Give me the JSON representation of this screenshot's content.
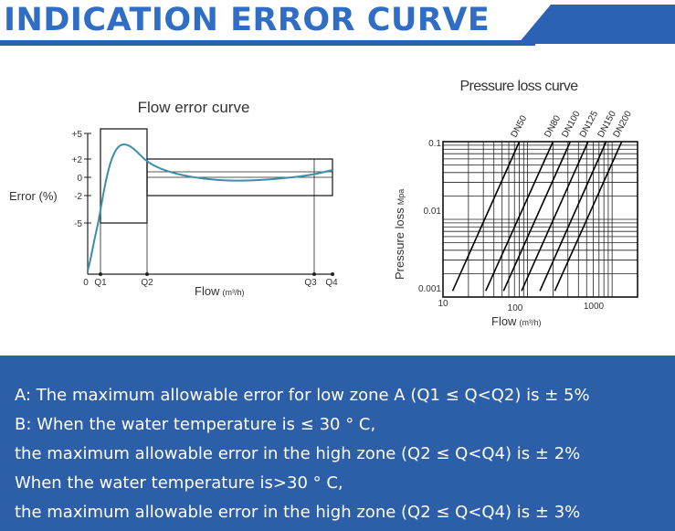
{
  "header": {
    "title": "INDICATION ERROR CURVE",
    "accent": "#2f6ec4",
    "band": "#2b62b3"
  },
  "flow_chart": {
    "title": "Flow error curve",
    "ylabel": "Error (%)",
    "xlabel": "Flow",
    "xunit": "(m³/h)",
    "yticks": [
      "+5",
      "+2",
      "0",
      "-2",
      "-5"
    ],
    "xticks": [
      "0",
      "Q1",
      "Q2",
      "Q3",
      "Q4"
    ],
    "curve_color": "#3a8fa8"
  },
  "pressure_chart": {
    "title": "Pressure loss curve",
    "ylabel": "Pressure loss",
    "yunit": "Mpa",
    "xlabel": "Flow",
    "xunit": "(m³/h)",
    "yticks": [
      "0.1",
      "0.01",
      "0.001"
    ],
    "xticks": [
      "10",
      "100",
      "1000"
    ],
    "series_labels": [
      "DN50",
      "DN80",
      "DN100",
      "DN125",
      "DN150",
      "DN200"
    ]
  },
  "chart_data": [
    {
      "type": "line",
      "title": "Flow error curve",
      "xlabel": "Flow (m³/h)",
      "ylabel": "Error (%)",
      "x_ticks": [
        "0",
        "Q1",
        "Q2",
        "Q3",
        "Q4"
      ],
      "y_ticks": [
        "+5",
        "+2",
        "0",
        "-2",
        "-5"
      ],
      "ylim": [
        -15,
        6
      ],
      "series": [
        {
          "x": [
            0,
            0.05,
            0.12,
            0.2,
            0.3,
            0.45,
            0.6,
            0.8,
            1.0,
            1.3,
            1.6,
            2.0,
            2.4,
            2.8,
            3.0,
            3.2,
            3.5,
            4.0,
            4.5,
            5.0,
            5.5,
            6.0,
            6.5,
            7.0,
            7.5,
            8.0,
            8.5,
            9.0
          ],
          "y": [
            -13.5,
            -10,
            -6,
            -2,
            1,
            3.2,
            3.8,
            3.7,
            3.3,
            2.8,
            2.2,
            1.5,
            0.9,
            0.5,
            0.35,
            0.2,
            0.0,
            -0.2,
            -0.3,
            -0.3,
            -0.25,
            -0.2,
            -0.1,
            0.0,
            0.1,
            0.3,
            0.5,
            0.7
          ]
        }
      ],
      "zones": [
        {
          "name": "A",
          "from": "Q1",
          "to": "Q2",
          "limit": 5
        },
        {
          "name": "B",
          "from": "Q2",
          "to": "Q4",
          "limit": 2
        }
      ]
    },
    {
      "type": "line",
      "title": "Pressure loss curve",
      "xlabel": "Flow (m³/h)",
      "ylabel": "Pressure loss Mpa",
      "x_scale": "log",
      "y_scale": "log",
      "xlim": [
        10,
        2000
      ],
      "ylim": [
        0.001,
        0.1
      ],
      "x_ticks": [
        "10",
        "100",
        "1000"
      ],
      "y_ticks": [
        "0.1",
        "0.01",
        "0.001"
      ],
      "grid": true,
      "series": [
        {
          "name": "DN50",
          "x": [
            13,
            80
          ],
          "y": [
            0.0012,
            0.1
          ]
        },
        {
          "name": "DN80",
          "x": [
            32,
            200
          ],
          "y": [
            0.0012,
            0.1
          ]
        },
        {
          "name": "DN100",
          "x": [
            52,
            320
          ],
          "y": [
            0.0012,
            0.1
          ]
        },
        {
          "name": "DN125",
          "x": [
            85,
            520
          ],
          "y": [
            0.0012,
            0.1
          ]
        },
        {
          "name": "DN150",
          "x": [
            140,
            850
          ],
          "y": [
            0.0012,
            0.1
          ]
        },
        {
          "name": "DN200",
          "x": [
            210,
            1300
          ],
          "y": [
            0.0012,
            0.1
          ]
        }
      ]
    }
  ],
  "info": {
    "background": "#2d5fa8",
    "lines": [
      "A: The maximum allowable error for low zone A (Q1 ≤ Q<Q2) is ± 5%",
      "B: When the water temperature is ≤ 30 ° C,",
      "the maximum allowable error in the high zone (Q2 ≤ Q<Q4) is ± 2%",
      "When the water temperature is>30 ° C,",
      "the maximum allowable error in the high zone (Q2 ≤ Q<Q4) is ± 3%"
    ]
  }
}
